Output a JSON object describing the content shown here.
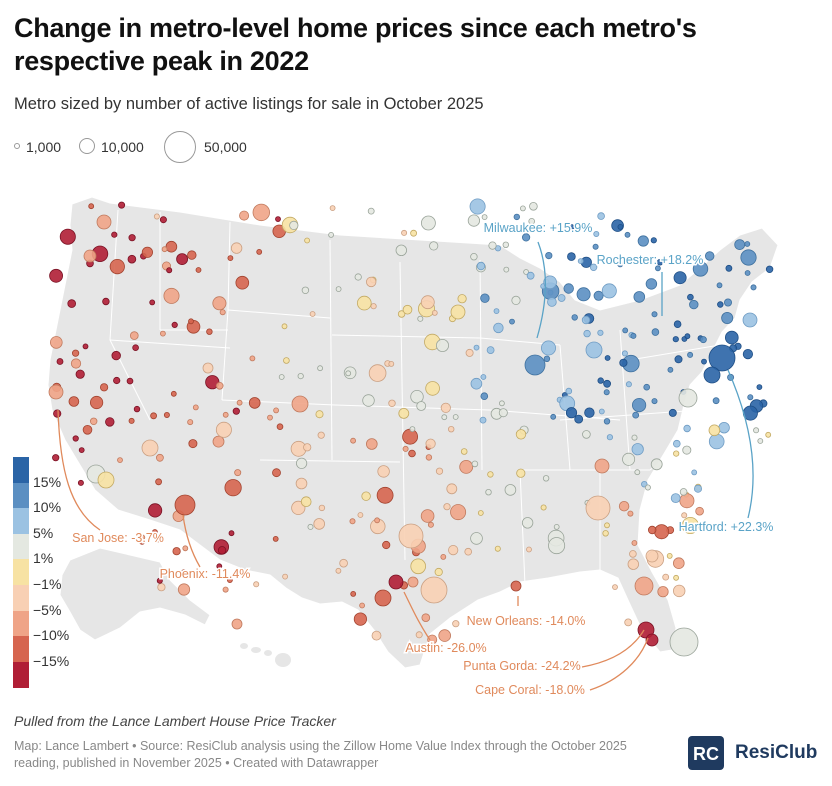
{
  "header": {
    "title": "Change in metro-level home prices since each metro's respective peak in 2022",
    "subtitle": "Metro sized by number of active listings for sale in October 2025"
  },
  "size_legend": [
    {
      "label": "1,000",
      "listings": 1000
    },
    {
      "label": "10,000",
      "listings": 10000
    },
    {
      "label": "50,000",
      "listings": 50000
    }
  ],
  "color_legend": {
    "ticks": [
      "15%",
      "10%",
      "5%",
      "1%",
      "−1%",
      "−5%",
      "−10%",
      "−15%"
    ],
    "colors": [
      "#2a64a6",
      "#5b8fc2",
      "#9bc2e2",
      "#e4e8e1",
      "#f7e2a3",
      "#f8d0b4",
      "#efa487",
      "#d6654f",
      "#b01e35"
    ]
  },
  "callouts": [
    {
      "id": "milwaukee",
      "text": "Milwaukee: +15.9%",
      "color": "#5aa3c7",
      "change_pct": 15.9
    },
    {
      "id": "rochester",
      "text": "Rochester: +18.2%",
      "color": "#5aa3c7",
      "change_pct": 18.2
    },
    {
      "id": "hartford",
      "text": "Hartford: +22.3%",
      "color": "#5aa3c7",
      "change_pct": 22.3
    },
    {
      "id": "san_jose",
      "text": "San Jose: -3.7%",
      "color": "#e08a5c",
      "change_pct": -3.7
    },
    {
      "id": "phoenix",
      "text": "Phoenix: -11.4%",
      "color": "#e08a5c",
      "change_pct": -11.4
    },
    {
      "id": "new_orleans",
      "text": "New Orleans: -14.0%",
      "color": "#e08a5c",
      "change_pct": -14.0
    },
    {
      "id": "austin",
      "text": "Austin: -26.0%",
      "color": "#e08a5c",
      "change_pct": -26.0
    },
    {
      "id": "punta_gorda",
      "text": "Punta Gorda: -24.2%",
      "color": "#e08a5c",
      "change_pct": -24.2
    },
    {
      "id": "cape_coral",
      "text": "Cape Coral: -18.0%",
      "color": "#e08a5c",
      "change_pct": -18.0
    }
  ],
  "footer": {
    "note": "Pulled from the Lance Lambert House Price Tracker",
    "credits": "Map: Lance Lambert • Source: ResiClub analysis using the Zillow Home Value Index through the October 2025 reading, published in November 2025 • Created with Datawrapper",
    "brand": "ResiClub",
    "brand_mark": "RC"
  }
}
